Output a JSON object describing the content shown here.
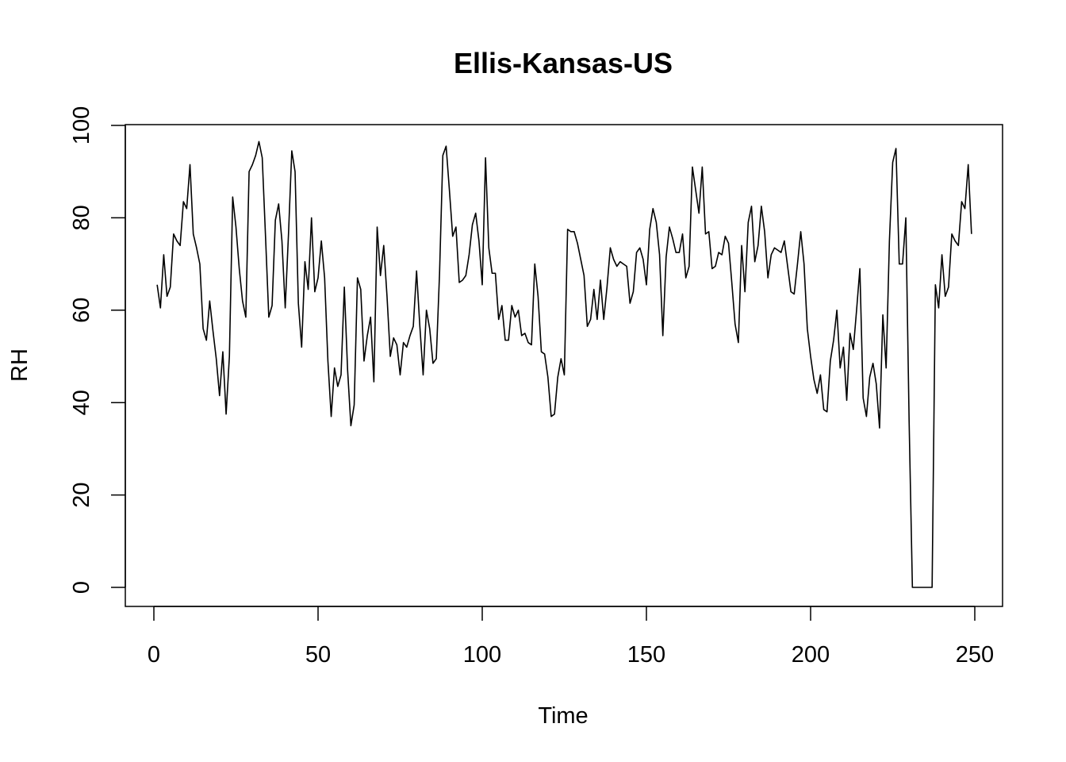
{
  "chart_data": {
    "type": "line",
    "title": "Ellis-Kansas-US",
    "xlabel": "Time",
    "ylabel": "RH",
    "xlim": [
      1,
      248
    ],
    "ylim": [
      0,
      100
    ],
    "xticks": [
      0,
      50,
      100,
      150,
      200,
      250
    ],
    "yticks": [
      0,
      20,
      40,
      60,
      80,
      100
    ],
    "grid": false,
    "line_color": "#000000",
    "series": [
      {
        "values": [
          65.5,
          60.5,
          72,
          63,
          65,
          76.5,
          75,
          74,
          83.5,
          82,
          91.5,
          76.5,
          73.5,
          70,
          56,
          53.5,
          62,
          55.5,
          49.5,
          41.5,
          51,
          37.5,
          50,
          84.5,
          78,
          69,
          62,
          58.5,
          90,
          91.5,
          93.5,
          96.5,
          93,
          76,
          58.5,
          61,
          79.5,
          83,
          75,
          60.5,
          76.5,
          94.5,
          90,
          61.5,
          52,
          70.5,
          64.5,
          80,
          64,
          67,
          75,
          67,
          49,
          37,
          47.5,
          43.5,
          46,
          65,
          47,
          35,
          39.5,
          67,
          64.5,
          49,
          54.5,
          58.5,
          44.5,
          78,
          67.5,
          74,
          63,
          50,
          54,
          52.5,
          46,
          53,
          52,
          54.5,
          56.5,
          68.5,
          56.5,
          46,
          60,
          56,
          48.5,
          49.5,
          68,
          93.5,
          95.5,
          86,
          76,
          78,
          66,
          66.5,
          67.5,
          72,
          78.5,
          81,
          75,
          65.5,
          93,
          73.5,
          68,
          68,
          58,
          61,
          53.5,
          53.5,
          61,
          58.5,
          60,
          54.5,
          55,
          53,
          52.5,
          70,
          63,
          51,
          50.5,
          45.5,
          37,
          37.5,
          45.5,
          49.5,
          46,
          77.5,
          77,
          77,
          74.5,
          71,
          67.5,
          56.5,
          58,
          64.5,
          58,
          66.5,
          58,
          65,
          73.5,
          71,
          69.5,
          70.5,
          70,
          69.5,
          61.5,
          64,
          72.5,
          73.5,
          71,
          65.5,
          77.5,
          82,
          79,
          72,
          54.5,
          71.5,
          78,
          75.5,
          72.5,
          72.5,
          76.5,
          67,
          69.5,
          91,
          86,
          81,
          91,
          76.5,
          77,
          69,
          69.5,
          72.5,
          72,
          76,
          74.5,
          66,
          57,
          53,
          74,
          64,
          79,
          82.5,
          70.5,
          74,
          82.5,
          77,
          67,
          72,
          73.5,
          73,
          72.5,
          75,
          69.5,
          64,
          63.5,
          70,
          77,
          70,
          56,
          50,
          45,
          42,
          46,
          38.5,
          38,
          49,
          53.5,
          60,
          47.5,
          52,
          40.5,
          55,
          51.5,
          60,
          69,
          41,
          37,
          45.5,
          48.5,
          44,
          34.5,
          59,
          47.5,
          75,
          92,
          95,
          70,
          70,
          80,
          36,
          0,
          0,
          0,
          0,
          0,
          0,
          0,
          65.5,
          60.5,
          72,
          63,
          65,
          76.5,
          75,
          74,
          83.5,
          82,
          91.5,
          76.5
        ]
      }
    ]
  }
}
